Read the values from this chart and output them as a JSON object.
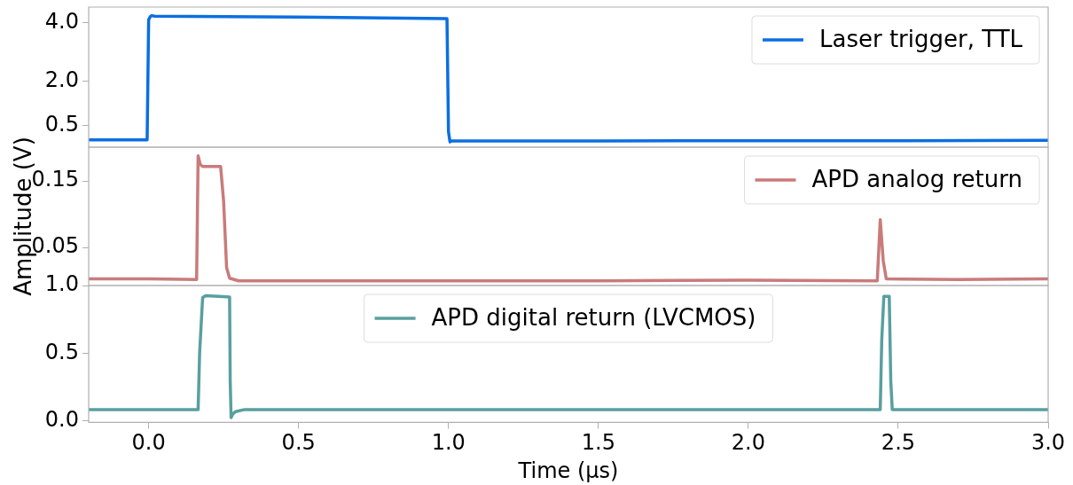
{
  "chart_data": [
    {
      "type": "line",
      "xlim": [
        -0.2,
        3.0
      ],
      "ylim": [
        -0.23,
        4.53
      ],
      "yticks": [
        {
          "value": 0.5,
          "label": "0.5"
        },
        {
          "value": 2.0,
          "label": "2.0"
        },
        {
          "value": 4.0,
          "label": "4.0"
        }
      ],
      "tick_labels": "y",
      "grid": false,
      "legend": "top right",
      "series": [
        {
          "name": "Laser trigger, TTL",
          "color": "#0b6fe0",
          "x": [
            -0.2,
            -0.005,
            0.0,
            0.005,
            0.01,
            0.02,
            0.5,
            0.995,
            1.0,
            1.005,
            1.01,
            1.5,
            2.0,
            2.5,
            3.0
          ],
          "values": [
            0.02,
            0.02,
            4.1,
            4.2,
            4.24,
            4.22,
            4.19,
            4.14,
            0.3,
            -0.05,
            -0.02,
            -0.02,
            -0.01,
            -0.01,
            0.0
          ]
        }
      ]
    },
    {
      "type": "line",
      "xlim": [
        -0.2,
        3.0
      ],
      "ylim": [
        -0.007,
        0.201
      ],
      "yticks": [
        {
          "value": 0.05,
          "label": "0.05"
        },
        {
          "value": 0.15,
          "label": "0.15"
        }
      ],
      "tick_labels": "y",
      "ylabel": "Amplitude (V)",
      "grid": false,
      "legend": "top right",
      "series": [
        {
          "name": "APD analog return",
          "color": "#c97b7b",
          "x": [
            -0.2,
            0.0,
            0.16,
            0.165,
            0.172,
            0.18,
            0.24,
            0.25,
            0.26,
            0.27,
            0.3,
            0.6,
            1.0,
            1.5,
            2.0,
            2.43,
            2.44,
            2.45,
            2.46,
            2.7,
            3.0
          ],
          "values": [
            0.003,
            0.003,
            0.002,
            0.188,
            0.175,
            0.172,
            0.172,
            0.12,
            0.02,
            0.004,
            0.0,
            0.0,
            0.0,
            0.0,
            0.001,
            0.0,
            0.092,
            0.03,
            0.003,
            0.002,
            0.003
          ]
        }
      ]
    },
    {
      "type": "line",
      "xlim": [
        -0.2,
        3.0
      ],
      "xticks": [
        {
          "value": 0,
          "label": "0.0"
        },
        {
          "value": 0.5,
          "label": "0.5"
        },
        {
          "value": 1,
          "label": "1.0"
        },
        {
          "value": 1.5,
          "label": "1.5"
        },
        {
          "value": 2,
          "label": "2.0"
        },
        {
          "value": 2.5,
          "label": "2.5"
        },
        {
          "value": 3,
          "label": "3.0"
        }
      ],
      "ylim": [
        -0.01,
        1.0
      ],
      "yticks": [
        {
          "value": 0,
          "label": "0.0"
        },
        {
          "value": 0.5,
          "label": "0.5"
        },
        {
          "value": 1,
          "label": "1.0"
        }
      ],
      "xlabel": "Time (μs)",
      "grid": false,
      "legend": "top",
      "series": [
        {
          "name": "APD digital return (LVCMOS)",
          "color": "#5a9f9f",
          "x": [
            -0.2,
            0.165,
            0.17,
            0.18,
            0.19,
            0.27,
            0.272,
            0.275,
            0.28,
            0.29,
            0.32,
            1.0,
            2.0,
            2.44,
            2.445,
            2.452,
            2.47,
            2.475,
            2.48,
            3.0
          ],
          "values": [
            0.085,
            0.085,
            0.5,
            0.91,
            0.925,
            0.915,
            0.3,
            0.025,
            0.05,
            0.07,
            0.085,
            0.085,
            0.085,
            0.085,
            0.6,
            0.92,
            0.92,
            0.3,
            0.085,
            0.085
          ]
        }
      ]
    }
  ]
}
